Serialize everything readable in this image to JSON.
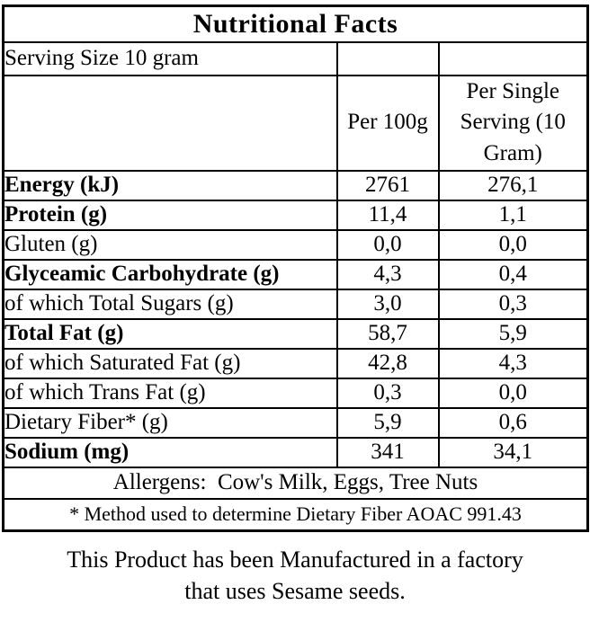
{
  "colors": {
    "background": "#ffffff",
    "text": "#000000",
    "border": "#000000"
  },
  "table": {
    "title": "Nutritional Facts",
    "serving_size": "Serving Size 10 gram",
    "columns": {
      "nutrient": "",
      "per_100g": "Per 100g",
      "per_serving": "Per Single Serving (10 Gram)"
    },
    "rows": [
      {
        "label": "Energy (kJ)",
        "bold": true,
        "per_100g": "2761",
        "per_serving": "276,1"
      },
      {
        "label": "Protein (g)",
        "bold": true,
        "per_100g": "11,4",
        "per_serving": "1,1"
      },
      {
        "label": "Gluten (g)",
        "bold": false,
        "per_100g": "0,0",
        "per_serving": "0,0"
      },
      {
        "label": "Glyceamic Carbohydrate (g)",
        "bold": true,
        "per_100g": "4,3",
        "per_serving": "0,4"
      },
      {
        "label": "of which Total Sugars (g)",
        "bold": false,
        "per_100g": "3,0",
        "per_serving": "0,3"
      },
      {
        "label": "Total Fat (g)",
        "bold": true,
        "per_100g": "58,7",
        "per_serving": "5,9"
      },
      {
        "label": "of which Saturated Fat (g)",
        "bold": false,
        "per_100g": "42,8",
        "per_serving": "4,3"
      },
      {
        "label": "of which Trans Fat (g)",
        "bold": false,
        "per_100g": "0,3",
        "per_serving": "0,0"
      },
      {
        "label": "Dietary Fiber* (g)",
        "bold": false,
        "per_100g": "5,9",
        "per_serving": "0,6"
      },
      {
        "label": "Sodium (mg)",
        "bold": true,
        "per_100g": "341",
        "per_serving": "34,1"
      }
    ],
    "allergens": "Allergens:  Cow's Milk, Eggs, Tree Nuts",
    "footnote": "* Method used to determine Dietary Fiber AOAC 991.43"
  },
  "footer": {
    "line1": "This Product has been Manufactured in a factory",
    "line2": "that uses Sesame seeds."
  }
}
